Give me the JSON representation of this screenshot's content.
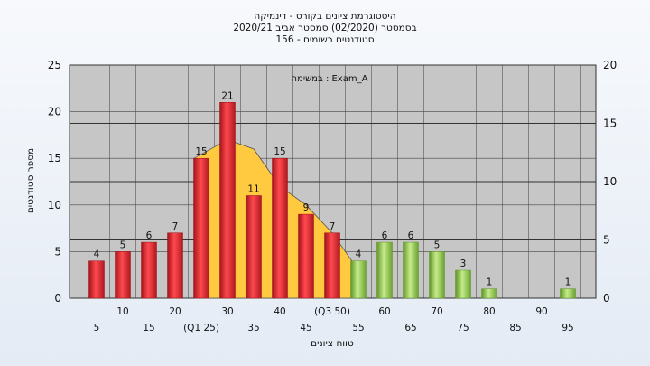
{
  "title_lines": [
    "היסטוגרמת ציונים בקורס - דינמיקה",
    "בסמסטר  (02/2020)  סמסטר אביב 2020/21",
    "156 - סטודנטים רשומים"
  ],
  "chart_data": {
    "type": "bar",
    "annotation": "במשימה : Exam_A",
    "xlabel": "טווח ציונים",
    "ylabel": "מספר סטודנטים",
    "categories": [
      "5",
      "10",
      "15",
      "20",
      "(Q1 25)",
      "30",
      "35",
      "40",
      "45",
      "(Q3 50)",
      "55",
      "60",
      "65",
      "70",
      "75",
      "80",
      "85",
      "90",
      "95"
    ],
    "values": [
      4,
      5,
      6,
      7,
      15,
      21,
      11,
      15,
      9,
      7,
      4,
      6,
      6,
      5,
      3,
      1,
      0,
      0,
      1
    ],
    "bar_colors": [
      "red",
      "red",
      "red",
      "red",
      "red",
      "red",
      "red",
      "red",
      "red",
      "red",
      "green",
      "green",
      "green",
      "green",
      "green",
      "green",
      "green",
      "green",
      "green"
    ],
    "quartile_area": {
      "categories_from": 4,
      "categories_to": 10,
      "values": [
        15,
        17,
        16,
        12,
        10,
        7,
        3
      ]
    },
    "y_left": {
      "min": 0,
      "max": 25,
      "ticks": [
        0,
        5,
        10,
        15,
        20,
        25
      ]
    },
    "y_right": {
      "min": 0,
      "max": 20,
      "ticks": [
        0,
        5,
        10,
        15,
        20
      ]
    },
    "grid": true,
    "colors": {
      "red": "#e0232d",
      "red_dark": "#9e1016",
      "green": "#9bd05a",
      "green_dark": "#5f9428",
      "area": "#ffc940",
      "plot_bg": "#c6c6c6"
    }
  }
}
